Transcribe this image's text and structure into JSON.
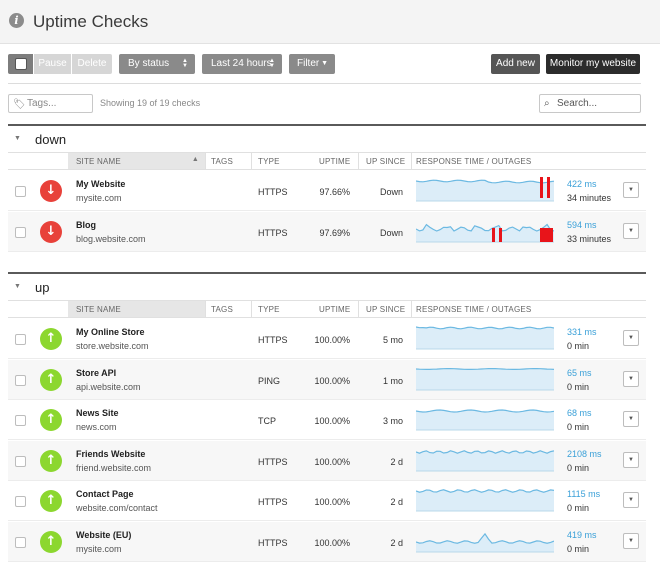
{
  "header": {
    "title": "Uptime Checks"
  },
  "toolbar": {
    "pause_label": "Pause",
    "delete_label": "Delete",
    "status_label": "By status",
    "time_label": "Last 24 hours",
    "filter_label": "Filter",
    "add_label": "Add new",
    "monitor_label": "Monitor my website"
  },
  "filters": {
    "tags_placeholder": "Tags...",
    "showing": "Showing 19 of 19 checks",
    "search_placeholder": "Search..."
  },
  "columns": {
    "site": "SITE NAME",
    "tags": "TAGS",
    "type": "TYPE",
    "uptime": "UPTIME",
    "since": "UP SINCE",
    "response": "RESPONSE TIME / OUTAGES"
  },
  "groups": {
    "down": {
      "title": "down",
      "rows": [
        {
          "name": "My Website",
          "host": "mysite.com",
          "type": "HTTPS",
          "uptime": "97.66%",
          "since": "Down",
          "ms": "422 ms",
          "mins": "34 minutes"
        },
        {
          "name": "Blog",
          "host": "blog.website.com",
          "type": "HTTPS",
          "uptime": "97.69%",
          "since": "Down",
          "ms": "594 ms",
          "mins": "33 minutes"
        }
      ]
    },
    "up": {
      "title": "up",
      "rows": [
        {
          "name": "My Online Store",
          "host": "store.website.com",
          "type": "HTTPS",
          "uptime": "100.00%",
          "since": "5 mo",
          "ms": "331 ms",
          "mins": "0 min"
        },
        {
          "name": "Store API",
          "host": "api.website.com",
          "type": "PING",
          "uptime": "100.00%",
          "since": "1 mo",
          "ms": "65 ms",
          "mins": "0 min"
        },
        {
          "name": "News Site",
          "host": "news.com",
          "type": "TCP",
          "uptime": "100.00%",
          "since": "3 mo",
          "ms": "68 ms",
          "mins": "0 min"
        },
        {
          "name": "Friends Website",
          "host": "friend.website.com",
          "type": "HTTPS",
          "uptime": "100.00%",
          "since": "2 d",
          "ms": "2108 ms",
          "mins": "0 min"
        },
        {
          "name": "Contact Page",
          "host": "website.com/contact",
          "type": "HTTPS",
          "uptime": "100.00%",
          "since": "2 d",
          "ms": "1115 ms",
          "mins": "0 min"
        },
        {
          "name": "Website (EU)",
          "host": "mysite.com",
          "type": "HTTPS",
          "uptime": "100.00%",
          "since": "2 d",
          "ms": "419 ms",
          "mins": "0 min"
        }
      ]
    }
  },
  "icons": {
    "down_arrow": "arrow-down-icon",
    "up_arrow": "arrow-up-icon"
  },
  "colors": {
    "down": "#e8413a",
    "up": "#8cd72f",
    "response_link": "#3aa0d8",
    "sparkline": "#6cb9e2",
    "outage": "#e8141a"
  }
}
